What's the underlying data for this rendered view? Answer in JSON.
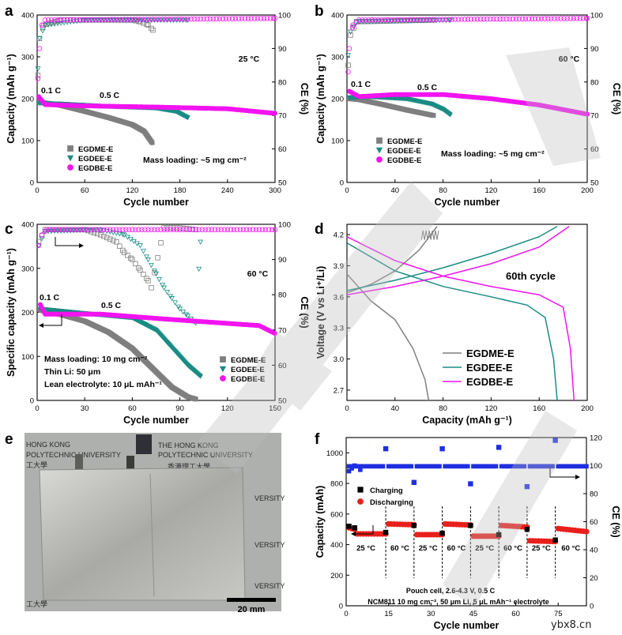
{
  "colors": {
    "gray": "#7f7f7f",
    "teal": "#1a8c84",
    "magenta": "#f214f0",
    "black": "#000000",
    "red": "#e8201c",
    "blue": "#1f2fe0",
    "watermark": "#bdbdbd"
  },
  "watermark_text": "ybx8.cn",
  "chart_data": [
    {
      "panel": "a",
      "type": "scatter",
      "xlabel": "Cycle number",
      "ylabel": "Capacity (mAh g⁻¹)",
      "y2label": "CE (%)",
      "xlim": [
        0,
        300
      ],
      "ylim": [
        0,
        400
      ],
      "y2lim": [
        50,
        100
      ],
      "xticks": [
        "0",
        "60",
        "120",
        "180",
        "240",
        "300"
      ],
      "yticks": [
        "0",
        "100",
        "200",
        "300",
        "400"
      ],
      "y2ticks": [
        "50",
        "60",
        "70",
        "80",
        "90",
        "100"
      ],
      "legend": [
        "EGDME-E",
        "EGDEE-E",
        "EGDBE-E"
      ],
      "annotations": {
        "temp": "25 °C",
        "low_rate": "0.1 C",
        "rate": "0.5 C",
        "loading": "Mass loading: ~5 mg cm⁻²"
      },
      "series": [
        {
          "name": "EGDME-E",
          "color": "gray",
          "capacity": [
            [
              2,
              192
            ],
            [
              10,
              190
            ],
            [
              30,
              184
            ],
            [
              60,
              170
            ],
            [
              90,
              155
            ],
            [
              120,
              138
            ],
            [
              135,
              122
            ],
            [
              145,
              95
            ]
          ],
          "ce": [
            [
              1,
              82
            ],
            [
              3,
              93
            ],
            [
              8,
              97
            ],
            [
              30,
              98.5
            ],
            [
              120,
              98.5
            ],
            [
              130,
              98
            ],
            [
              140,
              97
            ],
            [
              146,
              95.5
            ]
          ]
        },
        {
          "name": "EGDEE-E",
          "color": "teal",
          "capacity": [
            [
              2,
              190
            ],
            [
              30,
              188
            ],
            [
              90,
              182
            ],
            [
              150,
              178
            ],
            [
              175,
              170
            ],
            [
              190,
              155
            ]
          ],
          "ce": [
            [
              1,
              84
            ],
            [
              3,
              93
            ],
            [
              10,
              97
            ],
            [
              60,
              98.5
            ],
            [
              190,
              98.5
            ]
          ]
        },
        {
          "name": "EGDBE-E",
          "color": "magenta",
          "capacity": [
            [
              2,
              205
            ],
            [
              10,
              186
            ],
            [
              60,
              183
            ],
            [
              150,
              180
            ],
            [
              240,
              176
            ],
            [
              300,
              165
            ]
          ],
          "ce": [
            [
              1,
              81
            ],
            [
              3,
              90
            ],
            [
              6,
              97
            ],
            [
              10,
              98.5
            ],
            [
              300,
              99
            ]
          ]
        }
      ]
    },
    {
      "panel": "b",
      "type": "scatter",
      "xlabel": "Cycle number",
      "ylabel": "Capacity (mAh g⁻¹)",
      "y2label": "CE (%)",
      "xlim": [
        0,
        200
      ],
      "ylim": [
        0,
        400
      ],
      "y2lim": [
        50,
        100
      ],
      "xticks": [
        "0",
        "40",
        "80",
        "120",
        "160",
        "200"
      ],
      "yticks": [
        "0",
        "100",
        "200",
        "300",
        "400"
      ],
      "y2ticks": [
        "50",
        "60",
        "70",
        "80",
        "90",
        "100"
      ],
      "legend": [
        "EGDME-E",
        "EGDEE-E",
        "EGDBE-E"
      ],
      "annotations": {
        "temp": "60 °C",
        "low_rate": "0.1 C",
        "rate": "0.5 C",
        "loading": "Mass loading: ~5 mg cm⁻²"
      },
      "series": [
        {
          "name": "EGDME-E",
          "color": "gray",
          "capacity": [
            [
              2,
              200
            ],
            [
              10,
              198
            ],
            [
              30,
              186
            ],
            [
              50,
              173
            ],
            [
              72,
              160
            ]
          ],
          "ce": [
            [
              1,
              85
            ],
            [
              3,
              94
            ],
            [
              8,
              98
            ],
            [
              72,
              98.5
            ]
          ]
        },
        {
          "name": "EGDEE-E",
          "color": "teal",
          "capacity": [
            [
              2,
              203
            ],
            [
              20,
              205
            ],
            [
              50,
              200
            ],
            [
              70,
              188
            ],
            [
              80,
              175
            ],
            [
              86,
              162
            ]
          ],
          "ce": [
            [
              1,
              88
            ],
            [
              3,
              95
            ],
            [
              8,
              98
            ],
            [
              86,
              98.5
            ]
          ]
        },
        {
          "name": "EGDBE-E",
          "color": "magenta",
          "capacity": [
            [
              2,
              218
            ],
            [
              10,
              205
            ],
            [
              40,
              210
            ],
            [
              80,
              210
            ],
            [
              120,
              200
            ],
            [
              160,
              185
            ],
            [
              200,
              163
            ]
          ],
          "ce": [
            [
              1,
              83
            ],
            [
              2,
              90
            ],
            [
              5,
              97
            ],
            [
              10,
              98.5
            ],
            [
              200,
              99
            ]
          ]
        }
      ]
    },
    {
      "panel": "c",
      "type": "scatter",
      "xlabel": "Cycle number",
      "ylabel": "Specific capacity (mAh g⁻¹)",
      "y2label": "CE (%)",
      "xlim": [
        0,
        150
      ],
      "ylim": [
        0,
        400
      ],
      "y2lim": [
        50,
        100
      ],
      "xticks": [
        "0",
        "30",
        "60",
        "90",
        "120",
        "150"
      ],
      "yticks": [
        "0",
        "100",
        "200",
        "300",
        "400"
      ],
      "y2ticks": [
        "50",
        "60",
        "70",
        "80",
        "90",
        "100"
      ],
      "legend": [
        "EGDME-E",
        "EGDEE-E",
        "EGDBE-E"
      ],
      "annotations": {
        "temp": "60 °C",
        "low_rate": "0.1 C",
        "rate": "0.5 C",
        "loading": "Mass loading: 10 mg cm⁻²",
        "li": "Thin Li: 50 μm",
        "electrolyte": "Lean electrolyte: 10 μL mAh⁻¹"
      },
      "series": [
        {
          "name": "EGDME-E",
          "color": "gray",
          "capacity": [
            [
              2,
              205
            ],
            [
              15,
              195
            ],
            [
              30,
              180
            ],
            [
              45,
              155
            ],
            [
              60,
              118
            ],
            [
              75,
              65
            ],
            [
              85,
              30
            ],
            [
              95,
              8
            ],
            [
              100,
              3
            ]
          ],
          "ce": [
            [
              1,
              95
            ],
            [
              5,
              98.5
            ],
            [
              30,
              98.5
            ],
            [
              40,
              97
            ],
            [
              50,
              95
            ],
            [
              55,
              92
            ],
            [
              60,
              90
            ],
            [
              65,
              87
            ],
            [
              70,
              84
            ],
            [
              72,
              82
            ],
            [
              80,
              99
            ],
            [
              90,
              99
            ],
            [
              100,
              98.5
            ]
          ]
        },
        {
          "name": "EGDEE-E",
          "color": "teal",
          "capacity": [
            [
              2,
              208
            ],
            [
              30,
              198
            ],
            [
              60,
              188
            ],
            [
              75,
              160
            ],
            [
              85,
              120
            ],
            [
              95,
              80
            ],
            [
              103,
              55
            ]
          ],
          "ce": [
            [
              1,
              94
            ],
            [
              5,
              98
            ],
            [
              40,
              98.5
            ],
            [
              55,
              97
            ],
            [
              65,
              94
            ],
            [
              70,
              90
            ],
            [
              75,
              86
            ],
            [
              80,
              82
            ],
            [
              85,
              79
            ],
            [
              90,
              76
            ],
            [
              95,
              74
            ],
            [
              100,
              72
            ],
            [
              103,
              95
            ]
          ]
        },
        {
          "name": "EGDBE-E",
          "color": "magenta",
          "capacity": [
            [
              2,
              218
            ],
            [
              5,
              196
            ],
            [
              40,
              196
            ],
            [
              80,
              185
            ],
            [
              120,
              175
            ],
            [
              140,
              170
            ],
            [
              150,
              152
            ]
          ],
          "ce": [
            [
              1,
              94
            ],
            [
              3,
              97
            ],
            [
              6,
              98.5
            ],
            [
              150,
              98.5
            ]
          ]
        }
      ]
    },
    {
      "panel": "d",
      "type": "line",
      "xlabel": "Capacity (mAh g⁻¹)",
      "ylabel": "Voltage (V vs Li⁺/Li)",
      "xlim": [
        0,
        200
      ],
      "ylim": [
        2.6,
        4.3
      ],
      "xticks": [
        "0",
        "40",
        "80",
        "120",
        "160",
        "200"
      ],
      "yticks": [
        "2.7",
        "3.0",
        "3.3",
        "3.6",
        "3.9",
        "4.2"
      ],
      "legend": [
        "EGDME-E",
        "EGDEE-E",
        "EGDBE-E"
      ],
      "annotation": "60th cycle",
      "series": [
        {
          "name": "EGDME-E",
          "color": "gray",
          "charge": [
            [
              0,
              3.64
            ],
            [
              20,
              3.72
            ],
            [
              40,
              3.85
            ],
            [
              60,
              4.05
            ],
            [
              75,
              4.28
            ]
          ],
          "discharge": [
            [
              0,
              3.82
            ],
            [
              20,
              3.56
            ],
            [
              40,
              3.38
            ],
            [
              55,
              3.1
            ],
            [
              65,
              2.8
            ],
            [
              68,
              2.6
            ]
          ]
        },
        {
          "name": "EGDEE-E",
          "color": "teal",
          "charge": [
            [
              0,
              3.66
            ],
            [
              40,
              3.76
            ],
            [
              80,
              3.88
            ],
            [
              120,
              4.02
            ],
            [
              160,
              4.18
            ],
            [
              175,
              4.28
            ]
          ],
          "discharge": [
            [
              0,
              4.12
            ],
            [
              40,
              3.85
            ],
            [
              80,
              3.7
            ],
            [
              120,
              3.6
            ],
            [
              150,
              3.52
            ],
            [
              165,
              3.4
            ],
            [
              172,
              3.0
            ],
            [
              175,
              2.6
            ]
          ]
        },
        {
          "name": "EGDBE-E",
          "color": "magenta",
          "charge": [
            [
              0,
              3.62
            ],
            [
              40,
              3.7
            ],
            [
              80,
              3.8
            ],
            [
              120,
              3.92
            ],
            [
              160,
              4.08
            ],
            [
              185,
              4.28
            ]
          ],
          "discharge": [
            [
              0,
              4.18
            ],
            [
              40,
              3.95
            ],
            [
              80,
              3.8
            ],
            [
              120,
              3.7
            ],
            [
              160,
              3.62
            ],
            [
              180,
              3.5
            ],
            [
              186,
              3.1
            ],
            [
              189,
              2.6
            ]
          ]
        }
      ]
    },
    {
      "panel": "f",
      "type": "scatter",
      "xlabel": "Cycle number",
      "ylabel": "Capacity (mAh)",
      "y2label": "CE (%)",
      "xlim": [
        0,
        85
      ],
      "ylim": [
        0,
        1100
      ],
      "y2lim": [
        0,
        120
      ],
      "xticks": [
        "0",
        "15",
        "30",
        "45",
        "60",
        "75"
      ],
      "yticks": [
        "0",
        "200",
        "400",
        "600",
        "800",
        "1000"
      ],
      "y2ticks": [
        "0",
        "20",
        "40",
        "60",
        "80",
        "100",
        "120"
      ],
      "legend": [
        "Charging",
        "Discharging"
      ],
      "temps": [
        "25 °C",
        "60 °C",
        "25 °C",
        "60 °C",
        "25 °C",
        "60 °C",
        "25 °C",
        "60 °C"
      ],
      "boundaries": [
        14,
        24,
        34,
        44,
        54,
        64,
        74
      ],
      "note1": "Pouch cell, 2.6-4.3 V, 0.5 C",
      "note2": "NCM811 10 mg cm⁻², 50 μm Li, 5 μL mAh⁻¹ electrolyte",
      "segments": [
        [
          1,
          3,
          510,
          500
        ],
        [
          4,
          14,
          470,
          470
        ],
        [
          15,
          24,
          535,
          530
        ],
        [
          25,
          34,
          465,
          465
        ],
        [
          35,
          44,
          535,
          528
        ],
        [
          45,
          54,
          455,
          455
        ],
        [
          55,
          64,
          525,
          515
        ],
        [
          65,
          74,
          425,
          420
        ],
        [
          75,
          85,
          505,
          485
        ]
      ],
      "charge_markers": [
        [
          1,
          520
        ],
        [
          3,
          510
        ],
        [
          14,
          480
        ],
        [
          24,
          525
        ],
        [
          34,
          475
        ],
        [
          44,
          525
        ],
        [
          54,
          465
        ],
        [
          64,
          500
        ],
        [
          74,
          430
        ]
      ],
      "ce_spikes": [
        [
          14,
          112
        ],
        [
          24,
          88
        ],
        [
          34,
          112
        ],
        [
          44,
          87
        ],
        [
          54,
          113
        ],
        [
          64,
          85
        ],
        [
          74,
          118
        ]
      ],
      "ce_initial": [
        [
          1,
          96
        ],
        [
          2,
          98
        ],
        [
          3,
          100
        ],
        [
          5,
          97
        ]
      ]
    },
    {
      "panel": "e",
      "type": "photo",
      "scale_bar": "20 mm",
      "text_lines": [
        "THE HONG KONG",
        "POLYTECHNIC UNIVERSITY",
        "香港理工大學",
        "HONG KONG",
        "POLYTECHNIC UNIVERSITY",
        "工大學",
        "VERSITY",
        "VERSITY",
        "VERSITY",
        "工大學"
      ]
    }
  ]
}
